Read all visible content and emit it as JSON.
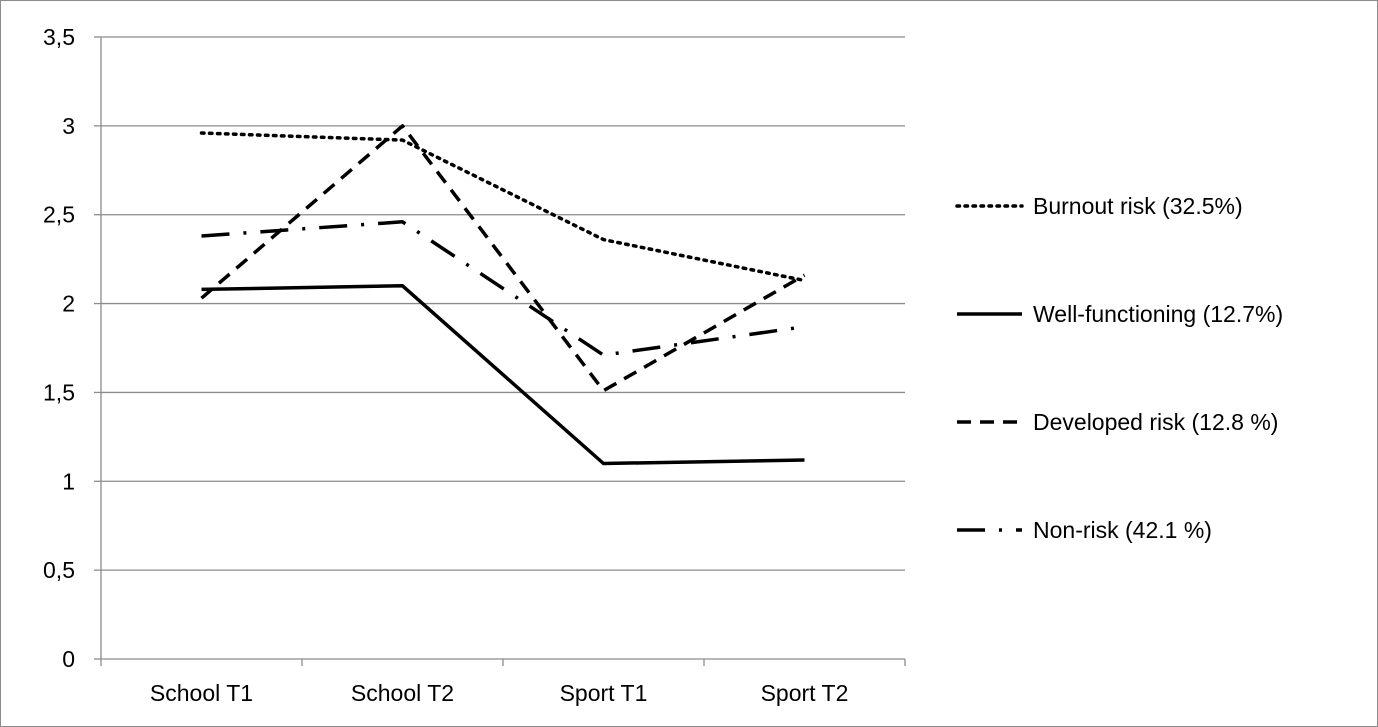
{
  "chart_data": {
    "type": "line",
    "categories": [
      "School T1",
      "School T2",
      "Sport T1",
      "Sport T2"
    ],
    "y_ticks": [
      "0",
      "0,5",
      "1",
      "1,5",
      "2",
      "2,5",
      "3",
      "3,5"
    ],
    "ylim": [
      0,
      3.5
    ],
    "grid": "horizontal",
    "legend_position": "right",
    "series": [
      {
        "name": "Burnout risk (32.5%)",
        "style": "dotted",
        "values": [
          2.96,
          2.92,
          2.36,
          2.13
        ]
      },
      {
        "name": "Well-functioning (12.7%)",
        "style": "solid",
        "values": [
          2.08,
          2.1,
          1.1,
          1.12
        ]
      },
      {
        "name": "Developed risk (12.8 %)",
        "style": "dashed",
        "values": [
          2.03,
          3.0,
          1.51,
          2.16
        ]
      },
      {
        "name": "Non-risk (42.1 %)",
        "style": "dashdot",
        "values": [
          2.38,
          2.46,
          1.71,
          1.87
        ]
      }
    ],
    "colors": {
      "line": "#000000",
      "grid": "#8c8c8c",
      "axis": "#8c8c8c"
    }
  }
}
